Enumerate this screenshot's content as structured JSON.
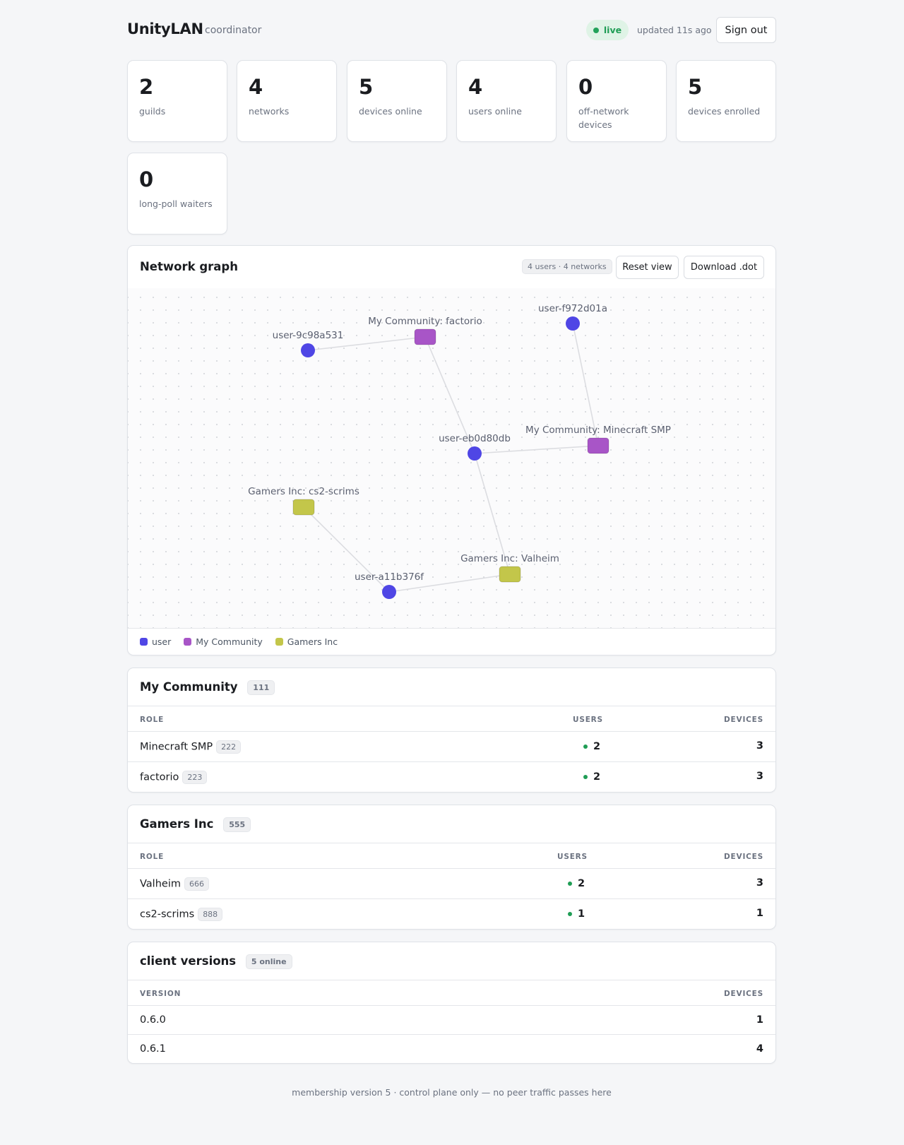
{
  "header": {
    "brand": "UnityLAN",
    "subtitle": "coordinator",
    "status": "live",
    "updated": "updated 11s ago",
    "signout_label": "Sign out"
  },
  "stats": [
    {
      "value": "2",
      "label": "guilds"
    },
    {
      "value": "4",
      "label": "networks"
    },
    {
      "value": "5",
      "label": "devices online"
    },
    {
      "value": "4",
      "label": "users online"
    },
    {
      "value": "0",
      "label": "off-network devices"
    },
    {
      "value": "5",
      "label": "devices enrolled"
    },
    {
      "value": "0",
      "label": "long-poll waiters"
    }
  ],
  "graph": {
    "title": "Network graph",
    "summary": "4 users · 4 networks",
    "reset_label": "Reset view",
    "download_label": "Download .dot",
    "nodes": [
      {
        "id": "u1",
        "kind": "user",
        "label": "user-9c98a531"
      },
      {
        "id": "n1",
        "kind": "mycommunity",
        "label": "My Community: factorio"
      },
      {
        "id": "u2",
        "kind": "user",
        "label": "user-f972d01a"
      },
      {
        "id": "u3",
        "kind": "user",
        "label": "user-eb0d80db"
      },
      {
        "id": "n2",
        "kind": "mycommunity",
        "label": "My Community: Minecraft SMP"
      },
      {
        "id": "n3",
        "kind": "gamersinc",
        "label": "Gamers Inc: cs2-scrims"
      },
      {
        "id": "n4",
        "kind": "gamersinc",
        "label": "Gamers Inc: Valheim"
      },
      {
        "id": "u4",
        "kind": "user",
        "label": "user-a11b376f"
      }
    ],
    "edges": [
      [
        "u1",
        "n1"
      ],
      [
        "n1",
        "u3"
      ],
      [
        "u2",
        "n2"
      ],
      [
        "u3",
        "n2"
      ],
      [
        "u3",
        "n4"
      ],
      [
        "n3",
        "u4"
      ],
      [
        "u4",
        "n4"
      ]
    ],
    "colors": {
      "user": "#4f46e5",
      "mycommunity": "#a855c7",
      "gamersinc": "#c3c64a"
    },
    "legend": [
      {
        "label": "user",
        "color": "#4f46e5"
      },
      {
        "label": "My Community",
        "color": "#a855c7"
      },
      {
        "label": "Gamers Inc",
        "color": "#c3c64a"
      }
    ]
  },
  "guilds": [
    {
      "name": "My Community",
      "id": "111",
      "columns": [
        "ROLE",
        "USERS",
        "DEVICES"
      ],
      "rows": [
        {
          "role": "Minecraft SMP",
          "id": "222",
          "users": "2",
          "devices": "3"
        },
        {
          "role": "factorio",
          "id": "223",
          "users": "2",
          "devices": "3"
        }
      ]
    },
    {
      "name": "Gamers Inc",
      "id": "555",
      "columns": [
        "ROLE",
        "USERS",
        "DEVICES"
      ],
      "rows": [
        {
          "role": "Valheim",
          "id": "666",
          "users": "2",
          "devices": "3"
        },
        {
          "role": "cs2-scrims",
          "id": "888",
          "users": "1",
          "devices": "1"
        }
      ]
    }
  ],
  "versions": {
    "title": "client versions",
    "badge": "5 online",
    "columns": [
      "VERSION",
      "DEVICES"
    ],
    "rows": [
      {
        "version": "0.6.0",
        "devices": "1"
      },
      {
        "version": "0.6.1",
        "devices": "4"
      }
    ]
  },
  "footer": "membership version 5 · control plane only — no peer traffic passes here"
}
